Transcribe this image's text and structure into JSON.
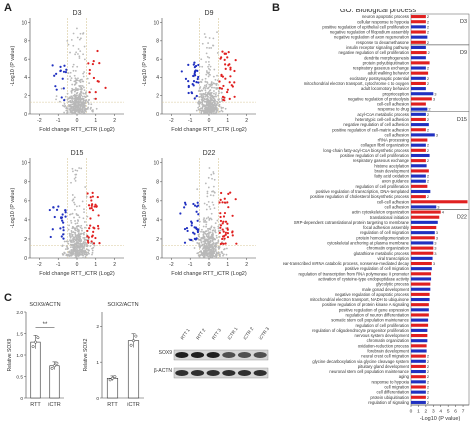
{
  "panels": {
    "a": "A",
    "b": "B",
    "c": "C"
  },
  "volcano": {
    "xlabel": "Fold change RTT_iCTR (Log2)",
    "ylabel": "-Log10 (P value)",
    "plots": [
      {
        "title": "D3",
        "xticks": [
          "-2",
          "-1",
          "0",
          "1",
          "2"
        ],
        "yticks": [
          "0",
          "2",
          "4",
          "6",
          "8",
          "10"
        ],
        "down_n": 16,
        "up_n": 14
      },
      {
        "title": "D9",
        "xticks": [
          "-2",
          "-1",
          "0",
          "1",
          "2"
        ],
        "yticks": [
          "0",
          "2",
          "4",
          "6",
          "8",
          "10"
        ],
        "down_n": 30,
        "up_n": 38
      },
      {
        "title": "D15",
        "xticks": [
          "-2",
          "-1",
          "0",
          "1",
          "2"
        ],
        "yticks": [
          "0",
          "2",
          "4",
          "6",
          "8",
          "10"
        ],
        "down_n": 24,
        "up_n": 36
      },
      {
        "title": "D22",
        "xticks": [
          "-2",
          "-1",
          "0",
          "1",
          "2"
        ],
        "yticks": [
          "0",
          "2",
          "4",
          "6",
          "8",
          "10"
        ],
        "down_n": 34,
        "up_n": 44
      }
    ],
    "colors": {
      "up": "#e02020",
      "down": "#2030c0",
      "ns": "#b8b8b8",
      "threshold": "#d8c89a"
    }
  },
  "bar_plots": [
    {
      "title": "SOX9/ACTN",
      "ylabel": "Relative SOX9",
      "categories": [
        "RTT",
        "iCTR"
      ],
      "values": [
        1.3,
        0.75
      ],
      "yticks": [
        "0",
        "0.5",
        "1.0",
        "1.5",
        "2.0"
      ],
      "ylim": [
        0,
        2.0
      ],
      "sig": "**"
    },
    {
      "title": "SOX2/ACTN",
      "ylabel": "Relative SOX2",
      "categories": [
        "RTT",
        "iCTR"
      ],
      "values": [
        0.55,
        1.6
      ],
      "yticks": [
        "0",
        "1",
        "2"
      ],
      "ylim": [
        0,
        2.4
      ],
      "sig": ""
    }
  ],
  "blot": {
    "lanes": [
      "RTT 1",
      "RTT 2",
      "RTT 3",
      "iCTR 1",
      "iCTR 2",
      "iCTR 3"
    ],
    "rows": [
      "SOX9",
      "β-ACTN"
    ]
  },
  "chart_data": {
    "type": "bar",
    "title": "GO: Biological process",
    "xlabel": "-Log10 (P value)",
    "xticks": [
      "0",
      "1",
      "2",
      "3",
      "4",
      "5",
      "6",
      "7"
    ],
    "xlim": [
      0,
      7.8
    ],
    "groups": [
      {
        "label": "D3",
        "count": 6
      },
      {
        "label": "D9",
        "count": 13
      },
      {
        "label": "D15",
        "count": 19
      },
      {
        "label": "D22",
        "count": 38
      }
    ],
    "colors": {
      "up": "#e02020",
      "down": "#2030c0"
    },
    "categories": [
      "neuron apoptotic process",
      "cellular response to hypoxia",
      "positive regulation of epithelial cell proliferation",
      "negative regulation of filopodium assembly",
      "negative regulation of axon regeneration",
      "response to dexamethasone",
      "insulin receptor signaling pathway",
      "negative regulation of cell proliferation",
      "dendrite morphogenesis",
      "protein polyubiquitination",
      "respiratory gaseous exchange",
      "adult walking behavior",
      "excitatory postsynaptic potential",
      "mitochondrial electron transport, cytochrome c to oxygen",
      "adult locomotory behavior",
      "proprioception",
      "negative regulation of proteolysis",
      "cell-cell adhesion",
      "response to drug",
      "acyl-CoA metabolic process",
      "heterotypic cell-cell adhesion",
      "negative regulation of cell adhesion",
      "positive regulation of cell-matrix adhesion",
      "cell adhesion",
      "rRNA processing",
      "collagen fibril organization",
      "long-chain fatty-acyl-CoA biosynthetic process",
      "positive regulation of cell proliferation",
      "respiratory gaseous exchange",
      "histone acetylation",
      "brain development",
      "fatty acid oxidation",
      "axon guidance",
      "regulation of cell proliferation",
      "positive regulation of transcription, DNA-templated",
      "positive regulation of cholesterol biosynthetic process",
      "cell-cell adhesion",
      "cell adhesion",
      "actin cytoskeleton organization",
      "translational initiation",
      "SRP-dependent cotranslational protein targeting to membrane",
      "focal adhesion assembly",
      "regulation of cell migration",
      "protein homooligomerization",
      "cytoskeletal anchoring at plasma membrane",
      "chromatin organization",
      "glutathione metabolic process",
      "viral transcription",
      "nuclear-transcribed mRNA catabolic process, nonsense-mediated decay",
      "positive regulation of cell migration",
      "regulation of transcription from RNA polymerase II promoter",
      "activation of cysteine-type endopeptidase activity",
      "glycolytic process",
      "male gonad development",
      "negative regulation of apoptotic process",
      "mitochondrial electron transport, NADH to ubiquinone",
      "positive regulation of protein kinase A signaling",
      "positive regulation of gene expression",
      "regulation of neuron differentiation",
      "somatic stem cell population maintenance",
      "regulation of cell proliferation",
      "regulation of oligodendrocyte progenitor proliferation",
      "nervous system development",
      "chromatin organization",
      "oxidation-reduction process",
      "forebrain development",
      "neural crest cell migration",
      "glycine decarboxylation via glycine cleavage system",
      "pituitary gland development",
      "neuronal stem cell population maintenance",
      "aging",
      "response to hypoxia",
      "cell migration",
      "cell differentiation",
      "protein ubiquitination",
      "regulation of signaling"
    ],
    "values": [
      2.0,
      2.0,
      2.0,
      2.0,
      2.2,
      2.0,
      2.0,
      2.1,
      2.0,
      2.5,
      2.0,
      2.3,
      2.0,
      2.0,
      2.0,
      3.0,
      2.8,
      2.0,
      2.2,
      2.0,
      2.0,
      2.4,
      2.0,
      3.2,
      2.2,
      2.0,
      2.0,
      2.5,
      2.0,
      2.1,
      2.4,
      2.0,
      2.0,
      2.2,
      2.6,
      2.0,
      7.6,
      3.4,
      4.0,
      3.8,
      3.6,
      3.4,
      3.2,
      3.2,
      3.0,
      3.0,
      3.0,
      2.9,
      2.8,
      2.8,
      2.7,
      2.7,
      2.6,
      2.6,
      2.5,
      2.5,
      2.4,
      2.4,
      2.4,
      2.3,
      2.3,
      2.2,
      2.2,
      2.2,
      2.1,
      2.1,
      2.0,
      2.0,
      2.0,
      2.0,
      2.0,
      2.0,
      2.0,
      2.0,
      2.0,
      2.0
    ],
    "directions": [
      "up",
      "up",
      "down",
      "up",
      "down",
      "up",
      "down",
      "up",
      "down",
      "up",
      "down",
      "up",
      "down",
      "up",
      "down",
      "down",
      "up",
      "up",
      "down",
      "down",
      "up",
      "down",
      "up",
      "down",
      "up",
      "down",
      "up",
      "down",
      "up",
      "down",
      "up",
      "down",
      "down",
      "up",
      "down",
      "up",
      "up",
      "down",
      "up",
      "up",
      "down",
      "up",
      "down",
      "up",
      "down",
      "up",
      "up",
      "down",
      "up",
      "down",
      "up",
      "down",
      "up",
      "down",
      "up",
      "down",
      "up",
      "down",
      "up",
      "down",
      "up",
      "down",
      "up",
      "down",
      "up",
      "down",
      "up",
      "down",
      "up",
      "down",
      "up",
      "down",
      "up",
      "down",
      "up",
      "down"
    ],
    "labels": [
      "2",
      "2",
      "2",
      "2",
      "",
      "2",
      "",
      "2",
      "",
      "",
      "2",
      "",
      "2",
      "2",
      "",
      "3",
      "3",
      "",
      "2",
      "2",
      "2",
      "",
      "2",
      "3",
      "",
      "2",
      "2",
      "",
      "2",
      "",
      "",
      "2",
      "2",
      "",
      "",
      "2",
      "",
      "3",
      "4",
      "",
      "",
      "",
      "3",
      "3",
      "3",
      "3",
      "3",
      "",
      "3",
      "",
      "",
      "",
      "",
      "",
      "",
      "",
      "",
      "",
      "",
      "",
      "",
      "",
      "",
      "",
      "",
      "",
      "2",
      "2",
      "2",
      "2",
      "2",
      "2",
      "2",
      "2",
      "2",
      "2"
    ]
  }
}
